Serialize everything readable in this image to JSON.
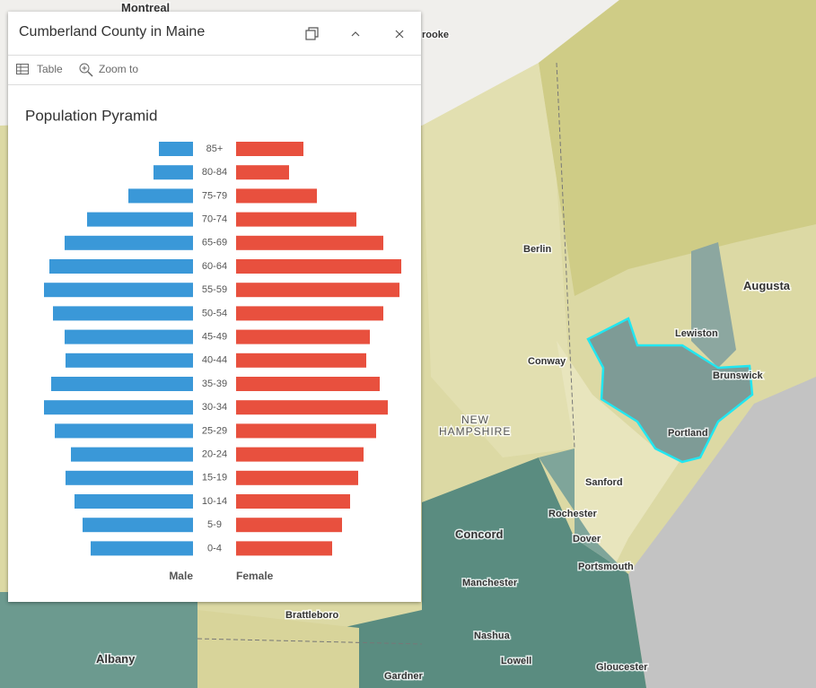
{
  "window": {
    "title": "Cumberland County in Maine",
    "toolbar": [
      "Table",
      "Zoom to"
    ]
  },
  "chart_data": {
    "type": "pyramid",
    "title": "Population Pyramid",
    "categories": [
      "85+",
      "80-84",
      "75-79",
      "70-74",
      "65-69",
      "60-64",
      "55-59",
      "50-54",
      "45-49",
      "40-44",
      "35-39",
      "30-34",
      "25-29",
      "20-24",
      "15-19",
      "10-14",
      "5-9",
      "0-4"
    ],
    "series": [
      {
        "name": "Male",
        "color": "#3a98d8",
        "values": [
          38,
          44,
          72,
          118,
          143,
          160,
          166,
          156,
          143,
          142,
          158,
          166,
          154,
          136,
          142,
          132,
          123,
          114
        ]
      },
      {
        "name": "Female",
        "color": "#e8503e",
        "values": [
          75,
          59,
          90,
          134,
          164,
          184,
          182,
          164,
          149,
          145,
          160,
          169,
          156,
          142,
          136,
          127,
          118,
          107
        ]
      }
    ]
  },
  "map": {
    "labels": [
      "Montreal",
      "rooke",
      "Berlin",
      "Augusta",
      "Lewiston",
      "Brunswick",
      "Conway",
      "NEW",
      "HAMPSHIRE",
      "Portland",
      "Sanford",
      "Rochester",
      "Dover",
      "Concord",
      "Portsmouth",
      "Manchester",
      "Brattleboro",
      "Nashua",
      "Albany",
      "Lowell",
      "Gardner",
      "Gloucester"
    ]
  }
}
